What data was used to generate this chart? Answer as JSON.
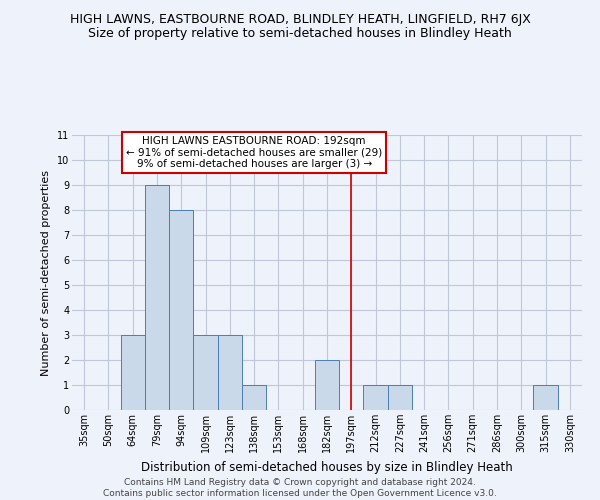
{
  "title": "HIGH LAWNS, EASTBOURNE ROAD, BLINDLEY HEATH, LINGFIELD, RH7 6JX",
  "subtitle": "Size of property relative to semi-detached houses in Blindley Heath",
  "xlabel": "Distribution of semi-detached houses by size in Blindley Heath",
  "ylabel": "Number of semi-detached properties",
  "categories": [
    "35sqm",
    "50sqm",
    "64sqm",
    "79sqm",
    "94sqm",
    "109sqm",
    "123sqm",
    "138sqm",
    "153sqm",
    "168sqm",
    "182sqm",
    "197sqm",
    "212sqm",
    "227sqm",
    "241sqm",
    "256sqm",
    "271sqm",
    "286sqm",
    "300sqm",
    "315sqm",
    "330sqm"
  ],
  "values": [
    0,
    0,
    3,
    9,
    8,
    3,
    3,
    1,
    0,
    0,
    2,
    0,
    1,
    1,
    0,
    0,
    0,
    0,
    0,
    1,
    0
  ],
  "bar_color": "#c9d9ea",
  "bar_edge_color": "#4a7fb5",
  "grid_color": "#c0c8d8",
  "background_color": "#eef2fa",
  "property_line_x": 11.0,
  "property_line_color": "#cc0000",
  "annotation_text": "HIGH LAWNS EASTBOURNE ROAD: 192sqm\n← 91% of semi-detached houses are smaller (29)\n9% of semi-detached houses are larger (3) →",
  "annotation_box_color": "#ffffff",
  "annotation_box_edge": "#cc0000",
  "ylim": [
    0,
    11
  ],
  "yticks": [
    0,
    1,
    2,
    3,
    4,
    5,
    6,
    7,
    8,
    9,
    10,
    11
  ],
  "footer": "Contains HM Land Registry data © Crown copyright and database right 2024.\nContains public sector information licensed under the Open Government Licence v3.0.",
  "title_fontsize": 9,
  "subtitle_fontsize": 9,
  "xlabel_fontsize": 8.5,
  "ylabel_fontsize": 8,
  "tick_fontsize": 7,
  "annotation_fontsize": 7.5,
  "footer_fontsize": 6.5
}
